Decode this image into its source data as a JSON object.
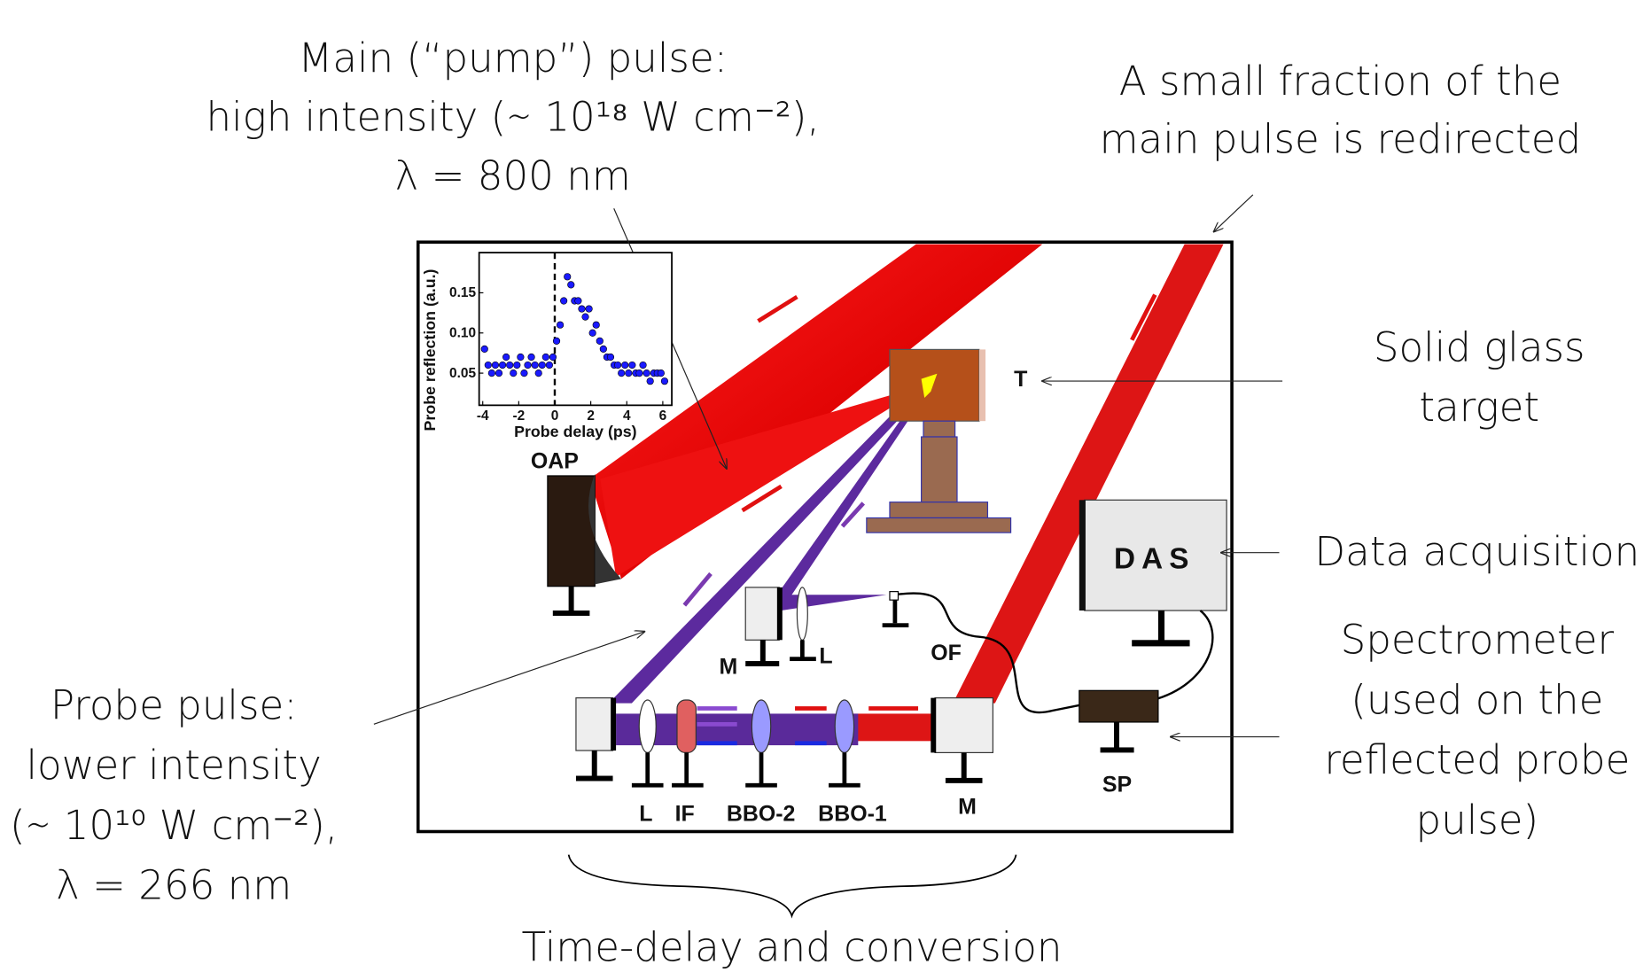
{
  "annotations": {
    "pump": [
      "Main (“pump”) pulse:",
      "high intensity (∼ 10¹⁸ W cm⁻²),",
      "λ = 800 nm"
    ],
    "fraction": [
      "A small fraction of the",
      "main pulse is redirected"
    ],
    "target": [
      "Solid glass",
      "target"
    ],
    "das": [
      "Data acquisition"
    ],
    "spectrometer": [
      "Spectrometer",
      "(used on the",
      "reflected probe",
      "pulse)"
    ],
    "probe": [
      "Probe pulse:",
      "lower intensity",
      "(∼ 10¹⁰ W cm⁻²),",
      "λ = 266 nm"
    ],
    "delay": [
      "Time-delay and conversion"
    ]
  },
  "labels": {
    "target": "T",
    "oap": "OAP",
    "das": "DAS",
    "mirror_top": "M",
    "lens_top": "L",
    "fiber": "OF",
    "lens": "L",
    "filter": "IF",
    "bbo2": "BBO-2",
    "bbo1": "BBO-1",
    "mirror": "M",
    "spectrometer": "SP"
  },
  "inset_chart": {
    "type": "scatter",
    "x_label": "Probe delay (ps)",
    "y_label": "Probe reflection (a.u.)",
    "color": "#1a1aff",
    "xlim": [
      -4.2,
      6.5
    ],
    "ylim": [
      0.01,
      0.2
    ],
    "xticks": [
      -4,
      -2,
      0,
      2,
      4,
      6
    ],
    "yticks": [
      0.05,
      {
        "value": 0.1,
        "label": "0.10"
      },
      0.15
    ],
    "x": [
      -3.9,
      -3.7,
      -3.5,
      -3.3,
      -3.1,
      -2.9,
      -2.7,
      -2.5,
      -2.3,
      -2.1,
      -1.9,
      -1.7,
      -1.5,
      -1.3,
      -1.1,
      -0.9,
      -0.7,
      -0.5,
      -0.3,
      -0.1,
      0.1,
      0.3,
      0.5,
      0.7,
      0.9,
      1.1,
      1.3,
      1.5,
      1.7,
      1.9,
      2.1,
      2.3,
      2.5,
      2.7,
      2.9,
      3.1,
      3.3,
      3.5,
      3.7,
      3.9,
      4.1,
      4.3,
      4.5,
      4.7,
      4.9,
      5.1,
      5.3,
      5.5,
      5.7,
      5.9,
      6.1
    ],
    "y": [
      0.08,
      0.06,
      0.05,
      0.06,
      0.05,
      0.06,
      0.07,
      0.06,
      0.05,
      0.06,
      0.07,
      0.05,
      0.06,
      0.07,
      0.06,
      0.05,
      0.06,
      0.07,
      0.06,
      0.07,
      0.09,
      0.11,
      0.14,
      0.17,
      0.16,
      0.14,
      0.14,
      0.13,
      0.12,
      0.13,
      0.1,
      0.11,
      0.09,
      0.08,
      0.07,
      0.07,
      0.06,
      0.06,
      0.05,
      0.06,
      0.05,
      0.06,
      0.05,
      0.05,
      0.06,
      0.05,
      0.04,
      0.05,
      0.05,
      0.05,
      0.04
    ]
  }
}
